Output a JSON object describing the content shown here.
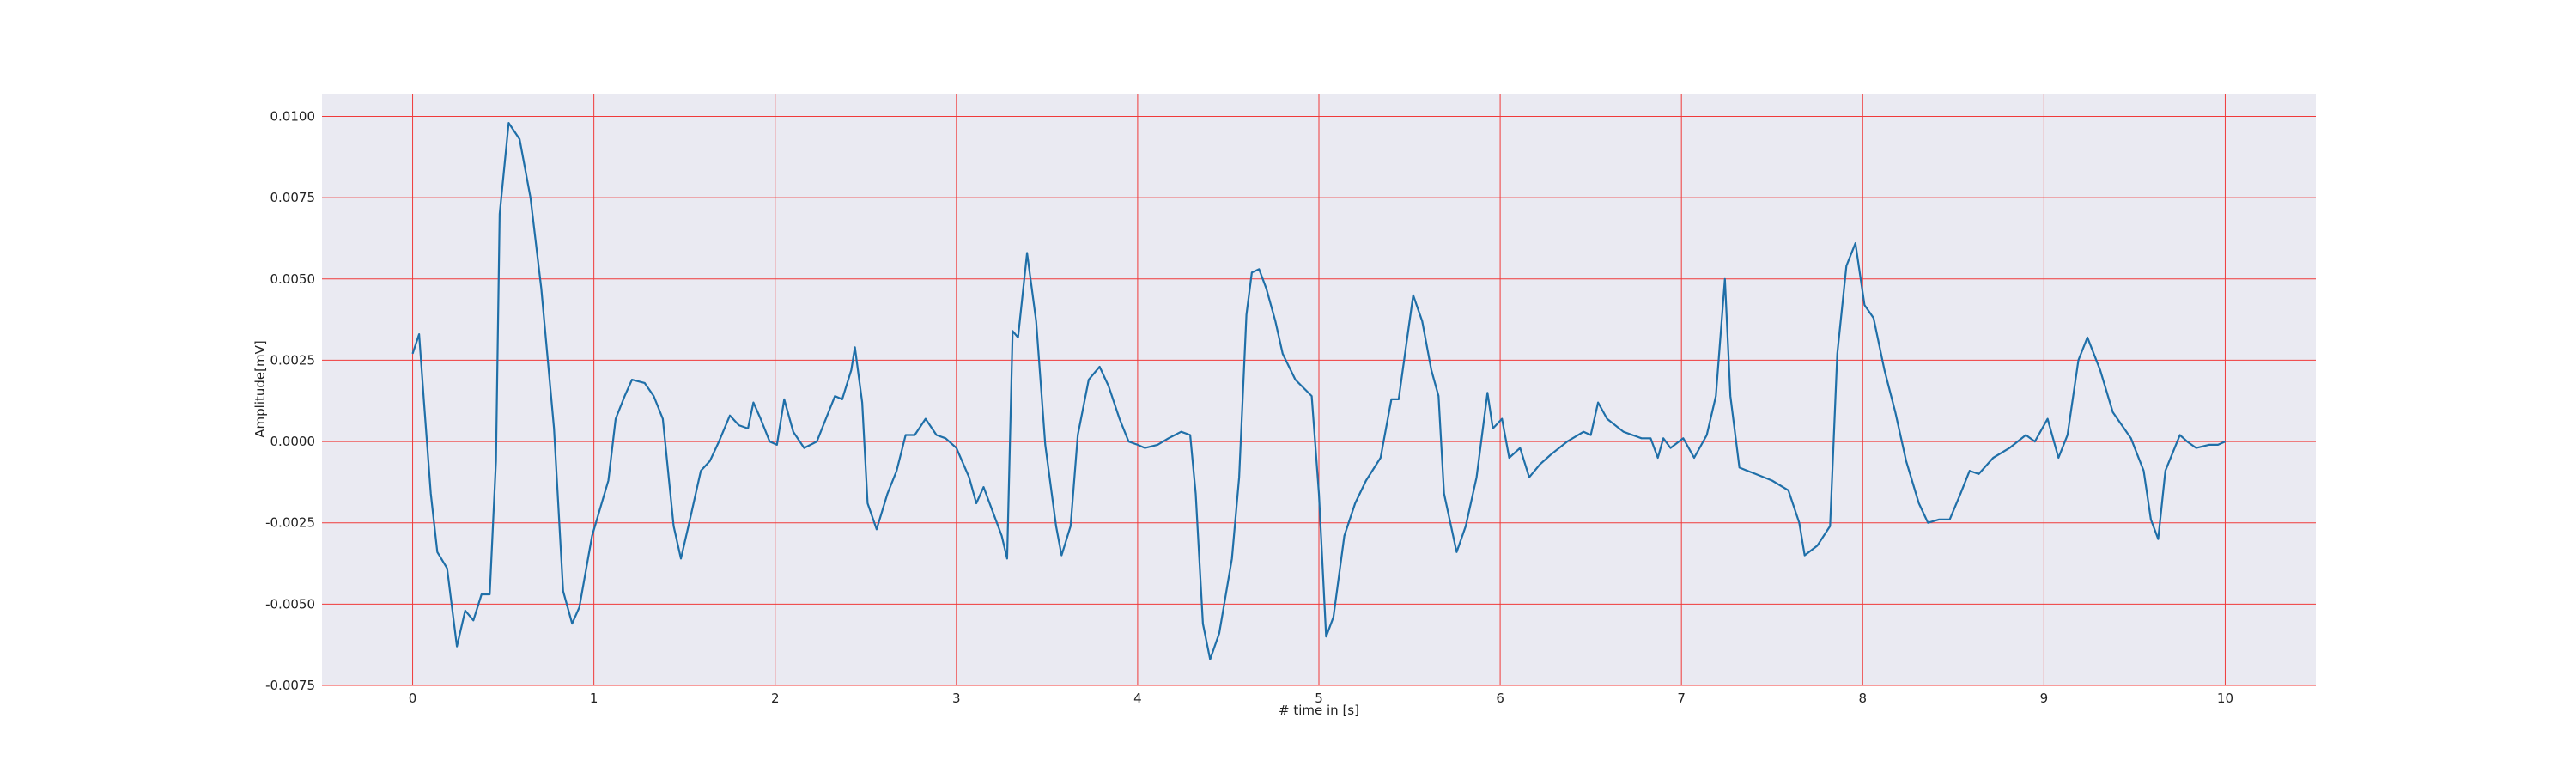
{
  "chart_data": {
    "type": "line",
    "x_label": "# time in [s]",
    "y_label": "Amplitude[mV]",
    "xlim": [
      -0.5,
      10.5
    ],
    "ylim": [
      -0.0075,
      0.0107
    ],
    "xticks": [
      0,
      1,
      2,
      3,
      4,
      5,
      6,
      7,
      8,
      9,
      10
    ],
    "yticks": [
      {
        "value": -0.0075,
        "label": "-0.0075"
      },
      {
        "value": -0.005,
        "label": "-0.0050"
      },
      {
        "value": -0.0025,
        "label": "-0.0025"
      },
      {
        "value": 0,
        "label": "0.0000"
      },
      {
        "value": 0.0025,
        "label": "0.0025"
      },
      {
        "value": 0.005,
        "label": "0.0050"
      },
      {
        "value": 0.0075,
        "label": "0.0075"
      },
      {
        "value": 0.01,
        "label": "0.0100"
      }
    ],
    "grid": true,
    "grid_color": "#f03a3a",
    "background": "#eaeaf2",
    "series": [
      {
        "color": "#1f6fa8",
        "x": [
          0,
          0.036,
          0.063,
          0.1,
          0.136,
          0.19,
          0.244,
          0.29,
          0.335,
          0.38,
          0.425,
          0.46,
          0.48,
          0.53,
          0.59,
          0.65,
          0.71,
          0.78,
          0.83,
          0.88,
          0.92,
          0.99,
          1.08,
          1.12,
          1.17,
          1.21,
          1.28,
          1.33,
          1.38,
          1.44,
          1.48,
          1.53,
          1.59,
          1.64,
          1.69,
          1.75,
          1.8,
          1.85,
          1.88,
          1.92,
          1.97,
          2.01,
          2.05,
          2.1,
          2.16,
          2.23,
          2.28,
          2.33,
          2.37,
          2.42,
          2.44,
          2.48,
          2.51,
          2.56,
          2.62,
          2.67,
          2.72,
          2.77,
          2.83,
          2.89,
          2.94,
          3.0,
          3.07,
          3.11,
          3.15,
          3.19,
          3.25,
          3.28,
          3.31,
          3.34,
          3.39,
          3.44,
          3.49,
          3.55,
          3.58,
          3.63,
          3.67,
          3.73,
          3.79,
          3.84,
          3.9,
          3.95,
          4.0,
          4.04,
          4.11,
          4.17,
          4.24,
          4.29,
          4.32,
          4.36,
          4.4,
          4.45,
          4.52,
          4.56,
          4.6,
          4.63,
          4.67,
          4.71,
          4.76,
          4.8,
          4.87,
          4.96,
          5.0,
          5.04,
          5.08,
          5.14,
          5.2,
          5.26,
          5.34,
          5.4,
          5.44,
          5.48,
          5.52,
          5.57,
          5.62,
          5.66,
          5.69,
          5.76,
          5.81,
          5.87,
          5.93,
          5.96,
          6.01,
          6.05,
          6.11,
          6.16,
          6.22,
          6.28,
          6.37,
          6.46,
          6.5,
          6.54,
          6.59,
          6.68,
          6.78,
          6.83,
          6.87,
          6.9,
          6.94,
          7.01,
          7.07,
          7.14,
          7.19,
          7.24,
          7.27,
          7.32,
          7.41,
          7.5,
          7.59,
          7.65,
          7.68,
          7.75,
          7.82,
          7.86,
          7.91,
          7.96,
          8.01,
          8.06,
          8.12,
          8.18,
          8.24,
          8.31,
          8.36,
          8.42,
          8.48,
          8.54,
          8.59,
          8.64,
          8.72,
          8.81,
          8.9,
          8.95,
          9.02,
          9.08,
          9.13,
          9.19,
          9.24,
          9.31,
          9.38,
          9.48,
          9.55,
          9.59,
          9.63,
          9.67,
          9.75,
          9.79,
          9.84,
          9.91,
          9.96,
          10.0
        ],
        "values": [
          0.0027,
          0.0033,
          0.0012,
          -0.0016,
          -0.0034,
          -0.0039,
          -0.0063,
          -0.0052,
          -0.0055,
          -0.0047,
          -0.0047,
          -0.0006,
          0.007,
          0.0098,
          0.0093,
          0.0075,
          0.0047,
          0.0004,
          -0.0046,
          -0.0056,
          -0.0051,
          -0.0029,
          -0.0012,
          0.0007,
          0.0014,
          0.0019,
          0.0018,
          0.0014,
          0.0007,
          -0.0026,
          -0.0036,
          -0.0024,
          -0.0009,
          -0.0006,
          0,
          0.0008,
          0.0005,
          0.0004,
          0.0012,
          0.0007,
          0,
          -0.0001,
          0.0013,
          0.0003,
          -0.0002,
          0,
          0.0007,
          0.0014,
          0.0013,
          0.0022,
          0.0029,
          0.0012,
          -0.0019,
          -0.0027,
          -0.0016,
          -0.0009,
          0.0002,
          0.0002,
          0.0007,
          0.0002,
          0.0001,
          -0.0002,
          -0.0011,
          -0.0019,
          -0.0014,
          -0.002,
          -0.0029,
          -0.0036,
          0.0034,
          0.0032,
          0.0058,
          0.0037,
          -0.0001,
          -0.0026,
          -0.0035,
          -0.0026,
          0.0002,
          0.0019,
          0.0023,
          0.0017,
          0.0007,
          0,
          -0.0001,
          -0.0002,
          -0.0001,
          0.0001,
          0.0003,
          0.0002,
          -0.0016,
          -0.0056,
          -0.0067,
          -0.0059,
          -0.0036,
          -0.0011,
          0.0039,
          0.0052,
          0.0053,
          0.0047,
          0.0037,
          0.0027,
          0.0019,
          0.0014,
          -0.0016,
          -0.006,
          -0.0054,
          -0.0029,
          -0.0019,
          -0.0012,
          -0.0005,
          0.0013,
          0.0013,
          0.0029,
          0.0045,
          0.0037,
          0.0022,
          0.0014,
          -0.0016,
          -0.0034,
          -0.0026,
          -0.0011,
          0.0015,
          0.0004,
          0.0007,
          -0.0005,
          -0.0002,
          -0.0011,
          -0.0007,
          -0.0004,
          0,
          0.0003,
          0.0002,
          0.0012,
          0.0007,
          0.0003,
          0.0001,
          0.0001,
          -0.0005,
          0.0001,
          -0.0002,
          0.0001,
          -0.0005,
          0.0002,
          0.0014,
          0.005,
          0.0014,
          -0.0008,
          -0.001,
          -0.0012,
          -0.0015,
          -0.0025,
          -0.0035,
          -0.0032,
          -0.0026,
          0.0027,
          0.0054,
          0.0061,
          0.0042,
          0.0038,
          0.0022,
          0.0009,
          -0.0006,
          -0.0019,
          -0.0025,
          -0.0024,
          -0.0024,
          -0.0016,
          -0.0009,
          -0.001,
          -0.0005,
          -0.0002,
          0.0002,
          0,
          0.0007,
          -0.0005,
          0.0002,
          0.0025,
          0.0032,
          0.0022,
          0.0009,
          0.0001,
          -0.0009,
          -0.0024,
          -0.003,
          -0.0009,
          0.0002,
          0,
          -0.0002,
          -0.0001,
          -0.0001,
          0
        ]
      }
    ]
  }
}
